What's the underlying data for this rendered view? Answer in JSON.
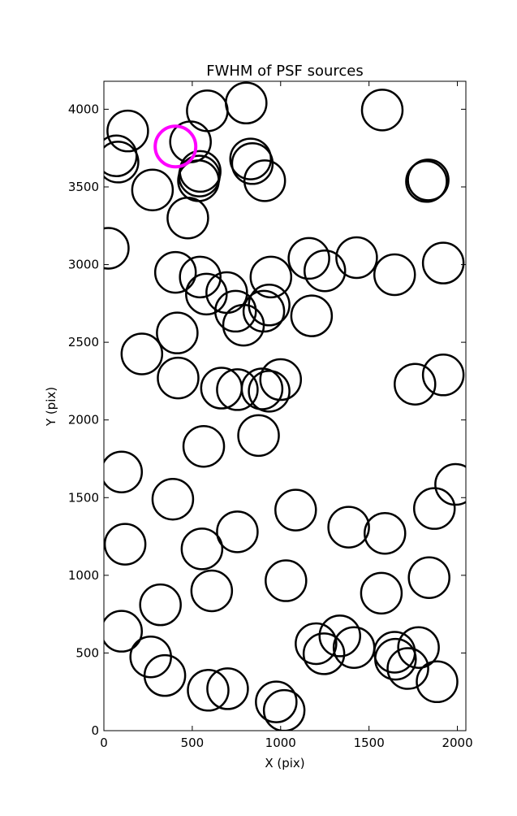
{
  "chart_data": {
    "type": "scatter",
    "title": "FWHM of PSF sources",
    "xlabel": "X (pix)",
    "ylabel": "Y (pix)",
    "xlim": [
      0,
      2048
    ],
    "ylim": [
      0,
      4180
    ],
    "x_ticks": [
      0,
      500,
      1000,
      1500,
      2000
    ],
    "y_ticks": [
      0,
      500,
      1000,
      1500,
      2000,
      2500,
      3000,
      3500,
      4000
    ],
    "grid": false,
    "legend": "none",
    "marker": "open circle",
    "marker_color": "#000000",
    "highlight_color": "#ff00ff",
    "series": [
      {
        "highlighted": false,
        "points": [
          {
            "x": 585,
            "y": 3990
          },
          {
            "x": 805,
            "y": 4040
          },
          {
            "x": 1575,
            "y": 3995
          },
          {
            "x": 135,
            "y": 3860
          },
          {
            "x": 490,
            "y": 3790
          },
          {
            "x": 70,
            "y": 3700
          },
          {
            "x": 80,
            "y": 3660
          },
          {
            "x": 830,
            "y": 3680
          },
          {
            "x": 840,
            "y": 3650
          },
          {
            "x": 545,
            "y": 3600
          },
          {
            "x": 540,
            "y": 3570
          },
          {
            "x": 535,
            "y": 3540
          },
          {
            "x": 910,
            "y": 3540
          },
          {
            "x": 1825,
            "y": 3535
          },
          {
            "x": 1835,
            "y": 3545
          },
          {
            "x": 275,
            "y": 3480
          },
          {
            "x": 475,
            "y": 3300
          },
          {
            "x": 25,
            "y": 3105
          },
          {
            "x": 1160,
            "y": 3040
          },
          {
            "x": 1430,
            "y": 3045
          },
          {
            "x": 1920,
            "y": 3010
          },
          {
            "x": 1250,
            "y": 2960
          },
          {
            "x": 405,
            "y": 2950
          },
          {
            "x": 545,
            "y": 2920
          },
          {
            "x": 945,
            "y": 2920
          },
          {
            "x": 1645,
            "y": 2935
          },
          {
            "x": 580,
            "y": 2810
          },
          {
            "x": 695,
            "y": 2820
          },
          {
            "x": 935,
            "y": 2740
          },
          {
            "x": 745,
            "y": 2700
          },
          {
            "x": 905,
            "y": 2700
          },
          {
            "x": 1175,
            "y": 2670
          },
          {
            "x": 790,
            "y": 2610
          },
          {
            "x": 415,
            "y": 2560
          },
          {
            "x": 215,
            "y": 2425
          },
          {
            "x": 1000,
            "y": 2260
          },
          {
            "x": 1920,
            "y": 2290
          },
          {
            "x": 420,
            "y": 2270
          },
          {
            "x": 1760,
            "y": 2230
          },
          {
            "x": 665,
            "y": 2205
          },
          {
            "x": 755,
            "y": 2195
          },
          {
            "x": 895,
            "y": 2200
          },
          {
            "x": 935,
            "y": 2185
          },
          {
            "x": 875,
            "y": 1900
          },
          {
            "x": 565,
            "y": 1830
          },
          {
            "x": 100,
            "y": 1665
          },
          {
            "x": 1990,
            "y": 1585
          },
          {
            "x": 390,
            "y": 1490
          },
          {
            "x": 1085,
            "y": 1420
          },
          {
            "x": 1870,
            "y": 1430
          },
          {
            "x": 1385,
            "y": 1310
          },
          {
            "x": 755,
            "y": 1280
          },
          {
            "x": 1590,
            "y": 1270
          },
          {
            "x": 120,
            "y": 1200
          },
          {
            "x": 555,
            "y": 1170
          },
          {
            "x": 1030,
            "y": 965
          },
          {
            "x": 1840,
            "y": 985
          },
          {
            "x": 610,
            "y": 900
          },
          {
            "x": 1570,
            "y": 885
          },
          {
            "x": 320,
            "y": 810
          },
          {
            "x": 100,
            "y": 640
          },
          {
            "x": 1335,
            "y": 610
          },
          {
            "x": 1200,
            "y": 560
          },
          {
            "x": 1415,
            "y": 535
          },
          {
            "x": 1780,
            "y": 535
          },
          {
            "x": 1645,
            "y": 505
          },
          {
            "x": 1245,
            "y": 495
          },
          {
            "x": 1650,
            "y": 460
          },
          {
            "x": 265,
            "y": 475
          },
          {
            "x": 1720,
            "y": 400
          },
          {
            "x": 345,
            "y": 355
          },
          {
            "x": 1885,
            "y": 315
          },
          {
            "x": 700,
            "y": 270
          },
          {
            "x": 590,
            "y": 260
          },
          {
            "x": 975,
            "y": 185
          },
          {
            "x": 1020,
            "y": 130
          }
        ]
      },
      {
        "highlighted": true,
        "points": [
          {
            "x": 405,
            "y": 3760
          }
        ]
      }
    ]
  }
}
